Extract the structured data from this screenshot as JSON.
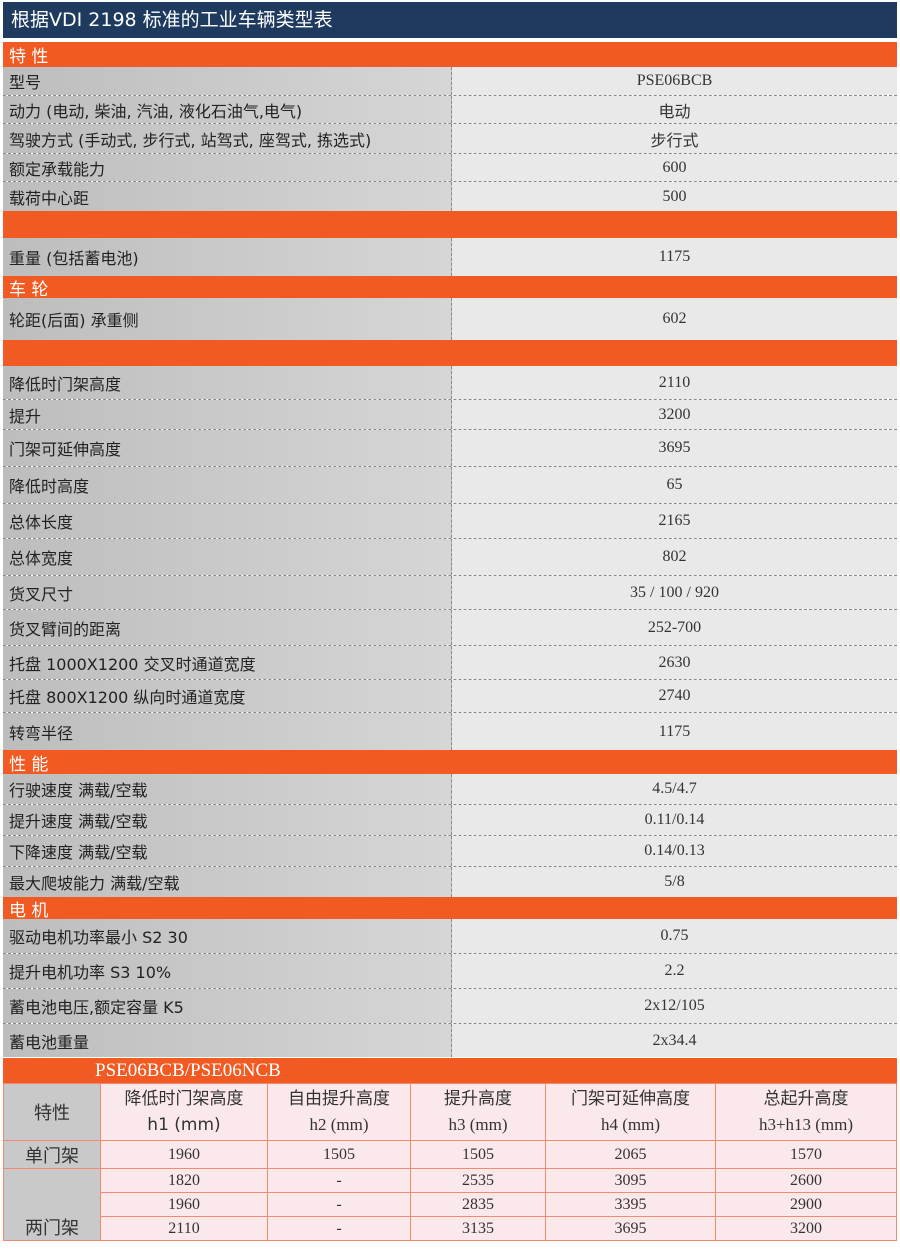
{
  "title": "根据VDI 2198 标准的工业车辆类型表",
  "sections": [
    {
      "header": "特 性",
      "rows": [
        {
          "label": "型号",
          "value": "PSE06BCB"
        },
        {
          "label": "动力 (电动, 柴油, 汽油, 液化石油气,电气)",
          "value": "电动"
        },
        {
          "label": "驾驶方式 (手动式, 步行式, 站驾式, 座驾式, 拣选式)",
          "value": "步行式"
        },
        {
          "label": "额定承载能力",
          "value": "600"
        },
        {
          "label": "载荷中心距",
          "value": "500"
        }
      ]
    },
    {
      "header": "",
      "rows": [
        {
          "label": "重量 (包括蓄电池)",
          "value": "1175"
        }
      ]
    },
    {
      "header": "车 轮",
      "rows": [
        {
          "label": "轮距(后面)   承重侧",
          "value": "602"
        }
      ]
    },
    {
      "header": "",
      "rows": [
        {
          "label": "降低时门架高度",
          "value": "2110"
        },
        {
          "label": "提升",
          "value": "3200"
        },
        {
          "label": "门架可延伸高度",
          "value": "3695"
        },
        {
          "label": "降低时高度",
          "value": "65"
        },
        {
          "label": "总体长度",
          "value": "2165"
        },
        {
          "label": "总体宽度",
          "value": "802"
        },
        {
          "label": "货叉尺寸",
          "value": "35 / 100 / 920"
        },
        {
          "label": "货叉臂间的距离",
          "value": "252-700"
        },
        {
          "label": "托盘 1000X1200  交叉时通道宽度",
          "value": "2630"
        },
        {
          "label": "托盘 800X1200  纵向时通道宽度",
          "value": "2740"
        },
        {
          "label": "转弯半径",
          "value": "1175"
        }
      ]
    },
    {
      "header": "性 能",
      "rows": [
        {
          "label": "行驶速度  满载/空载",
          "value": "4.5/4.7"
        },
        {
          "label": "提升速度  满载/空载",
          "value": "0.11/0.14"
        },
        {
          "label": "下降速度  满载/空载",
          "value": "0.14/0.13"
        },
        {
          "label": "最大爬坡能力  满载/空载",
          "value": "5/8"
        }
      ]
    },
    {
      "header": "电 机",
      "rows": [
        {
          "label": "驱动电机功率最小 S2 30",
          "value": "0.75"
        },
        {
          "label": "提升电机功率 S3 10%",
          "value": "2.2"
        },
        {
          "label": "蓄电池电压,额定容量 K5",
          "value": "2x12/105"
        },
        {
          "label": "蓄电池重量",
          "value": "2x34.4"
        }
      ]
    }
  ],
  "mast_table": {
    "title": "PSE06BCB/PSE06NCB",
    "corner": "特性",
    "columns": [
      {
        "name": "降低时门架高度",
        "unit": "h1 (mm)"
      },
      {
        "name": "自由提升高度",
        "unit": "h2 (mm)"
      },
      {
        "name": "提升高度",
        "unit": "h3 (mm)"
      },
      {
        "name": "门架可延伸高度",
        "unit": "h4 (mm)"
      },
      {
        "name": "总起升高度",
        "unit": "h3+h13 (mm)"
      }
    ],
    "groups": [
      {
        "label": "单门架",
        "rows": [
          [
            "1960",
            "1505",
            "1505",
            "2065",
            "1570"
          ]
        ]
      },
      {
        "label": "两门架",
        "rows": [
          [
            "1820",
            "-",
            "2535",
            "3095",
            "2600"
          ],
          [
            "1960",
            "-",
            "2835",
            "3395",
            "2900"
          ],
          [
            "2110",
            "-",
            "3135",
            "3695",
            "3200"
          ]
        ]
      }
    ]
  },
  "colors": {
    "title_bar": "#1e3a5f",
    "section_bar": "#f15a22",
    "table_bg": "#fbe8ea"
  }
}
